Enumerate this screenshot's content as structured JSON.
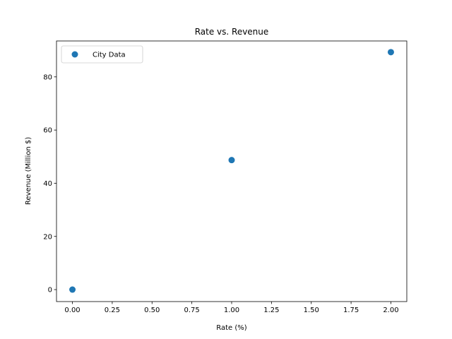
{
  "chart_data": {
    "type": "scatter",
    "title": "Rate vs. Revenue",
    "xlabel": "Rate (%)",
    "ylabel": "Revenue (Million $)",
    "xlim": [
      -0.1,
      2.1
    ],
    "ylim": [
      -4.5,
      93.5
    ],
    "xticks": [
      0.0,
      0.25,
      0.5,
      0.75,
      1.0,
      1.25,
      1.5,
      1.75,
      2.0
    ],
    "xtick_labels": [
      "0.00",
      "0.25",
      "0.50",
      "0.75",
      "1.00",
      "1.25",
      "1.50",
      "1.75",
      "2.00"
    ],
    "yticks": [
      0,
      20,
      40,
      60,
      80
    ],
    "ytick_labels": [
      "0",
      "20",
      "40",
      "60",
      "80"
    ],
    "grid": false,
    "legend_position": "top-left",
    "series": [
      {
        "name": "City Data",
        "color": "#1f77b4",
        "marker": "circle",
        "points": [
          {
            "x": 0.0,
            "y": 0.0
          },
          {
            "x": 1.0,
            "y": 48.7
          },
          {
            "x": 2.0,
            "y": 89.3
          }
        ]
      }
    ]
  }
}
